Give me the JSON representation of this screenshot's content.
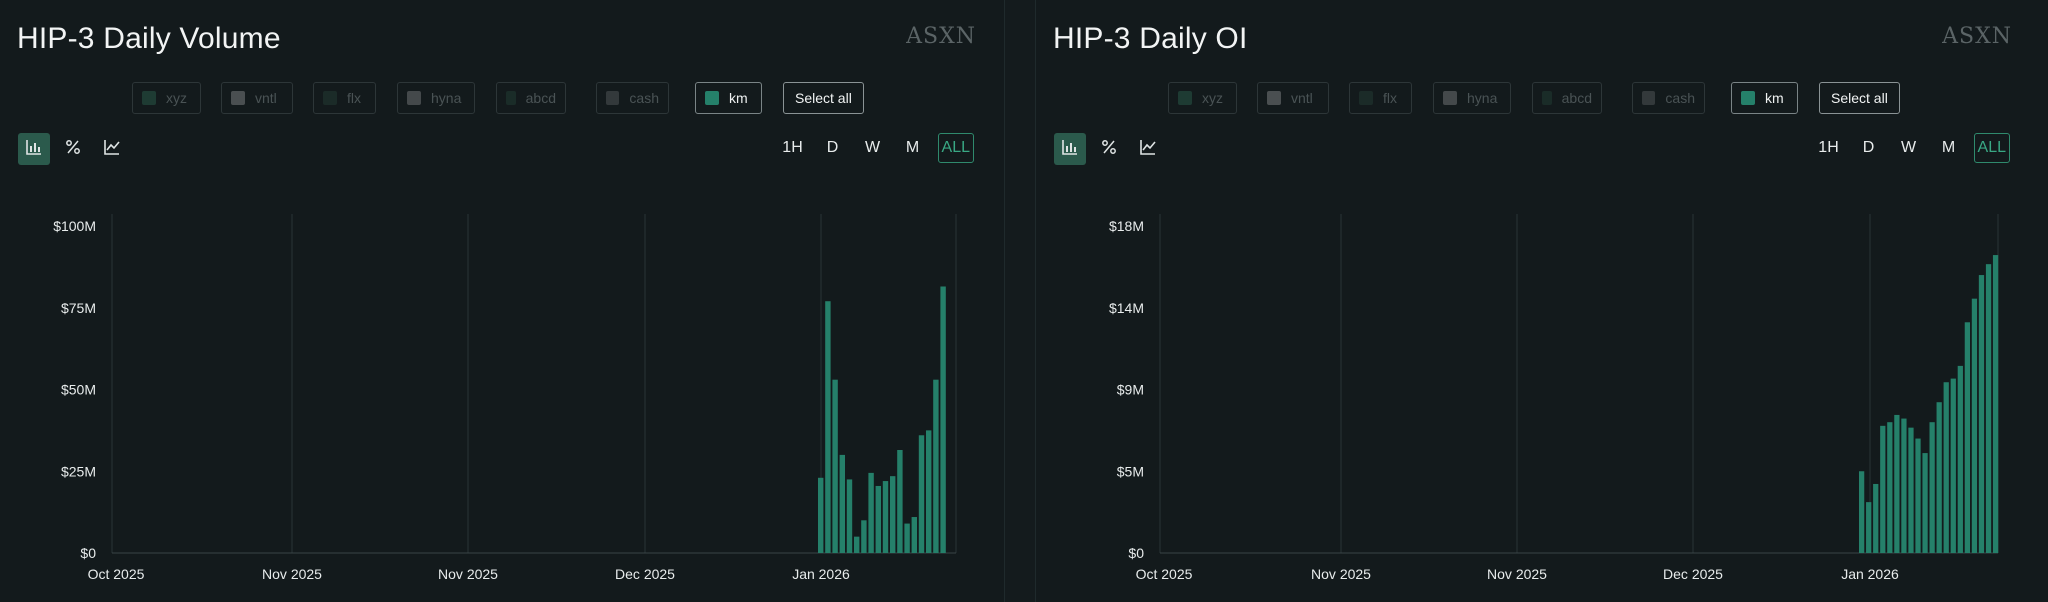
{
  "panels": [
    {
      "title": "HIP-3 Daily Volume",
      "brand": "ASXN",
      "legend": [
        {
          "label": "xyz",
          "color": "#1e3b33",
          "active": false
        },
        {
          "label": "vntl",
          "color": "#4a4f51",
          "active": false
        },
        {
          "label": "flx",
          "color": "#1b2b28",
          "active": false
        },
        {
          "label": "hyna",
          "color": "#44494b",
          "active": false
        },
        {
          "label": "abcd",
          "color": "#1a2c28",
          "active": false
        },
        {
          "label": "cash",
          "color": "#33393b",
          "active": false
        },
        {
          "label": "km",
          "color": "#25806a",
          "active": true
        }
      ],
      "select_all_label": "Select all",
      "tools": [
        {
          "name": "bar-chart-icon",
          "glyph": "📊",
          "active": true
        },
        {
          "name": "percent-icon",
          "glyph": "%",
          "active": false
        },
        {
          "name": "line-chart-icon",
          "glyph": "📈",
          "active": false
        }
      ],
      "ranges": [
        "1H",
        "D",
        "W",
        "M",
        "ALL"
      ],
      "active_range": "ALL"
    },
    {
      "title": "HIP-3 Daily OI",
      "brand": "ASXN",
      "legend": [
        {
          "label": "xyz",
          "color": "#1e3b33",
          "active": false
        },
        {
          "label": "vntl",
          "color": "#4a4f51",
          "active": false
        },
        {
          "label": "flx",
          "color": "#1b2b28",
          "active": false
        },
        {
          "label": "hyna",
          "color": "#44494b",
          "active": false
        },
        {
          "label": "abcd",
          "color": "#1a2c28",
          "active": false
        },
        {
          "label": "cash",
          "color": "#33393b",
          "active": false
        },
        {
          "label": "km",
          "color": "#25806a",
          "active": true
        }
      ],
      "select_all_label": "Select all",
      "tools": [
        {
          "name": "bar-chart-icon",
          "glyph": "📊",
          "active": true
        },
        {
          "name": "percent-icon",
          "glyph": "%",
          "active": false
        },
        {
          "name": "line-chart-icon",
          "glyph": "📈",
          "active": false
        }
      ],
      "ranges": [
        "1H",
        "D",
        "W",
        "M",
        "ALL"
      ],
      "active_range": "ALL"
    }
  ],
  "chart_data": [
    {
      "type": "bar",
      "series": [
        {
          "name": "km",
          "color": "#25806a",
          "values": [
            23,
            77,
            53,
            30,
            22.5,
            5,
            10,
            24.5,
            20.5,
            22,
            23.5,
            31.5,
            9,
            11,
            36,
            37.5,
            53,
            81.5
          ]
        }
      ],
      "y_ticks": [
        "$0",
        "$25M",
        "$50M",
        "$75M",
        "$100M"
      ],
      "ylim": [
        0,
        100
      ],
      "x_ticks": [
        "Oct 2025",
        "Nov 2025",
        "Nov 2025",
        "Dec 2025",
        "Jan 2026"
      ],
      "grid": "vertical"
    },
    {
      "type": "bar",
      "series": [
        {
          "name": "km",
          "color": "#25806a",
          "values": [
            4.5,
            2.8,
            3.8,
            7.0,
            7.2,
            7.6,
            7.4,
            6.9,
            6.3,
            5.5,
            7.2,
            8.3,
            9.4,
            9.6,
            10.3,
            12.7,
            14.0,
            15.3,
            15.9,
            16.4
          ]
        }
      ],
      "y_ticks": [
        "$0",
        "$5M",
        "$9M",
        "$14M",
        "$18M"
      ],
      "ylim": [
        0,
        18
      ],
      "x_ticks": [
        "Oct 2025",
        "Nov 2025",
        "Nov 2025",
        "Dec 2025",
        "Jan 2026"
      ],
      "grid": "vertical"
    }
  ]
}
